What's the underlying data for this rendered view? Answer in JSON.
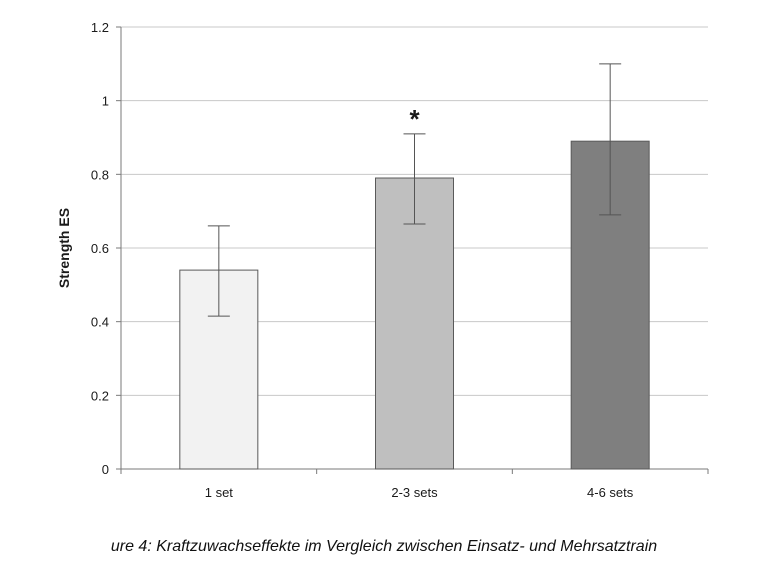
{
  "caption": "ure 4: Kraftzuwachseffekte im Vergleich zwischen Einsatz- und Mehrsatztrain",
  "chart_data": {
    "type": "bar",
    "title": "",
    "xlabel": "",
    "ylabel": "Strength ES",
    "categories": [
      "1 set",
      "2-3 sets",
      "4-6 sets"
    ],
    "values": [
      0.54,
      0.79,
      0.89
    ],
    "error_low": [
      0.415,
      0.665,
      0.69
    ],
    "error_high": [
      0.66,
      0.91,
      1.1
    ],
    "ylim": [
      0,
      1.2
    ],
    "yticks": [
      0,
      0.2,
      0.4,
      0.6,
      0.8,
      1,
      1.2
    ],
    "ytick_labels": [
      "0",
      "0.2",
      "0.4",
      "0.6",
      "0.8",
      "1",
      "1.2"
    ],
    "bar_colors": [
      "#f2f2f2",
      "#bfbfbf",
      "#7f7f7f"
    ],
    "bar_edge_color": "#5a5a5a",
    "grid": true,
    "grid_color": "#c8c8c8",
    "annotations": [
      {
        "category": "2-3 sets",
        "text": "*"
      }
    ]
  }
}
